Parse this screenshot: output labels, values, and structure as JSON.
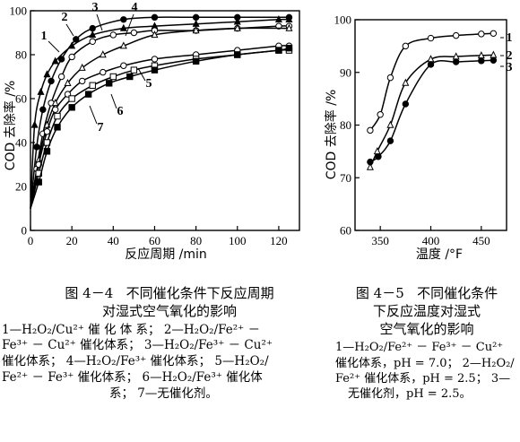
{
  "chart_data": [
    {
      "type": "line",
      "figure_no": "图 4－4",
      "title_line1": "不同催化条件下反应周期",
      "title_line2": "对湿式空气氧化的影响",
      "xlabel": "反应周期 /min",
      "ylabel": "COD 去除率 /%",
      "xlim": [
        0,
        130
      ],
      "ylim": [
        0,
        100
      ],
      "xticks": [
        0,
        20,
        40,
        60,
        80,
        100,
        120
      ],
      "yticks": [
        0,
        20,
        40,
        60,
        80,
        100
      ],
      "grid": false,
      "series": [
        {
          "name": "1",
          "marker": "filled-triangle",
          "x": [
            0,
            2,
            5,
            8,
            12,
            20,
            30,
            45,
            60,
            80,
            100,
            120,
            125
          ],
          "y": [
            10,
            48,
            63,
            71,
            77,
            84,
            89,
            92,
            93,
            94,
            95,
            96,
            96
          ]
        },
        {
          "name": "2",
          "marker": "filled-circle",
          "x": [
            0,
            3,
            6,
            10,
            15,
            22,
            30,
            45,
            60,
            80,
            100,
            125
          ],
          "y": [
            10,
            38,
            55,
            68,
            78,
            87,
            92,
            96,
            97,
            97,
            97,
            97
          ]
        },
        {
          "name": "3",
          "marker": "open-circle",
          "x": [
            0,
            3,
            6,
            10,
            15,
            20,
            30,
            40,
            50,
            60,
            80,
            100,
            120,
            125
          ],
          "y": [
            10,
            28,
            44,
            58,
            70,
            79,
            86,
            89,
            90,
            91,
            91,
            92,
            93,
            93
          ]
        },
        {
          "name": "4",
          "marker": "open-triangle",
          "x": [
            0,
            4,
            8,
            12,
            18,
            25,
            35,
            45,
            60,
            80,
            100,
            125
          ],
          "y": [
            10,
            32,
            48,
            58,
            67,
            74,
            80,
            84,
            89,
            91,
            92,
            92
          ]
        },
        {
          "name": "5",
          "marker": "open-circle",
          "x": [
            0,
            4,
            8,
            12,
            18,
            25,
            35,
            45,
            60,
            80,
            100,
            120,
            125
          ],
          "y": [
            10,
            30,
            45,
            55,
            62,
            68,
            72,
            75,
            78,
            80,
            82,
            84,
            84
          ]
        },
        {
          "name": "6",
          "marker": "open-square",
          "x": [
            0,
            4,
            8,
            13,
            20,
            30,
            40,
            50,
            60,
            80,
            100,
            120,
            125
          ],
          "y": [
            10,
            26,
            40,
            52,
            60,
            66,
            70,
            73,
            75,
            78,
            80,
            82,
            82
          ]
        },
        {
          "name": "7",
          "marker": "filled-square",
          "x": [
            0,
            4,
            8,
            13,
            20,
            28,
            38,
            48,
            60,
            80,
            100,
            120,
            125
          ],
          "y": [
            10,
            22,
            36,
            47,
            56,
            62,
            67,
            70,
            73,
            77,
            80,
            82,
            83
          ]
        }
      ],
      "legend_lines": [
        "1—H₂O₂/Cu²⁺ 催 化 体 系； 2—H₂O₂/Fe²⁺ －",
        "Fe³⁺ － Cu²⁺ 催化体系； 3—H₂O₂/Fe³⁺ － Cu²⁺",
        "催化体系； 4—H₂O₂/Fe³⁺ 催化体系； 5—H₂O₂/",
        "Fe²⁺ － Fe³⁺ 催化体系； 6—H₂O₂/Fe³⁺ 催化体",
        "系； 7—无催化剂。"
      ]
    },
    {
      "type": "line",
      "figure_no": "图 4－5",
      "title_line1": "不同催化条件",
      "title_line2": "下反应温度对湿式",
      "title_line3": "空气氧化的影响",
      "xlabel": "温度 /°F",
      "ylabel": "COD 去除率 /%",
      "xlim": [
        325,
        475
      ],
      "ylim": [
        60,
        100
      ],
      "xticks": [
        350,
        400,
        450
      ],
      "yticks": [
        60,
        70,
        80,
        90,
        100
      ],
      "grid": false,
      "series": [
        {
          "name": "1",
          "marker": "open-circle",
          "x": [
            340,
            350,
            360,
            375,
            400,
            425,
            450,
            462
          ],
          "y": [
            79,
            82,
            89,
            95,
            96.5,
            97,
            97.3,
            97.4
          ]
        },
        {
          "name": "2",
          "marker": "open-triangle",
          "x": [
            340,
            347,
            360,
            375,
            400,
            425,
            450,
            462
          ],
          "y": [
            72,
            75,
            80,
            88,
            92.5,
            93,
            93.2,
            93.3
          ]
        },
        {
          "name": "3",
          "marker": "filled-circle",
          "x": [
            340,
            348,
            360,
            375,
            400,
            425,
            450,
            462
          ],
          "y": [
            73,
            74,
            77,
            84,
            91.5,
            92,
            92.2,
            92.3
          ]
        }
      ],
      "legend_lines": [
        "1—H₂O₂/Fe²⁺ － Fe³⁺ － Cu²⁺",
        "催化体系，pH = 7.0； 2—H₂O₂/",
        "Fe²⁺ 催化体系，pH = 2.5； 3—",
        "无催化剂，pH = 2.5。"
      ]
    }
  ]
}
